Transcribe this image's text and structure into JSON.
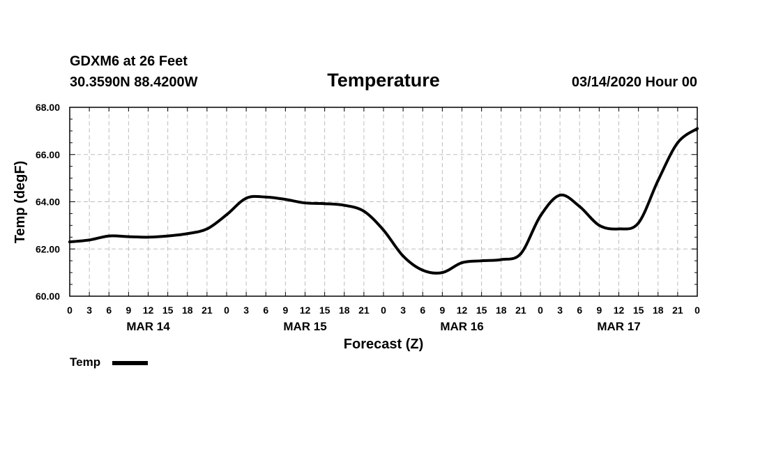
{
  "header": {
    "station": "GDXM6 at 26 Feet",
    "location": "30.3590N 88.4200W",
    "run": "03/14/2020 Hour 00"
  },
  "chart_data": {
    "type": "line",
    "title": "Temperature",
    "xlabel": "Forecast (Z)",
    "ylabel": "Temp (degF)",
    "xlim": [
      0,
      96
    ],
    "ylim": [
      60,
      68
    ],
    "yticks": [
      "60.00",
      "62.00",
      "64.00",
      "66.00",
      "68.00"
    ],
    "xtick_values": [
      0,
      3,
      6,
      9,
      12,
      15,
      18,
      21,
      24,
      27,
      30,
      33,
      36,
      39,
      42,
      45,
      48,
      51,
      54,
      57,
      60,
      63,
      66,
      69,
      72,
      75,
      78,
      81,
      84,
      87,
      90,
      93,
      96
    ],
    "xtick_labels": [
      "0",
      "3",
      "6",
      "9",
      "12",
      "15",
      "18",
      "21",
      "0",
      "3",
      "6",
      "9",
      "12",
      "15",
      "18",
      "21",
      "0",
      "3",
      "6",
      "9",
      "12",
      "15",
      "18",
      "21",
      "0",
      "3",
      "6",
      "9",
      "12",
      "15",
      "18",
      "21",
      "0"
    ],
    "day_labels": [
      {
        "x": 12,
        "label": "MAR 14"
      },
      {
        "x": 36,
        "label": "MAR 15"
      },
      {
        "x": 60,
        "label": "MAR 16"
      },
      {
        "x": 84,
        "label": "MAR 17"
      }
    ],
    "grid": true,
    "legend_position": "bottom-left",
    "series": [
      {
        "name": "Temp",
        "color": "#000000",
        "x": [
          0,
          3,
          6,
          9,
          12,
          15,
          18,
          21,
          24,
          27,
          30,
          33,
          36,
          39,
          42,
          45,
          48,
          51,
          54,
          57,
          60,
          63,
          66,
          69,
          72,
          75,
          78,
          81,
          84,
          87,
          90,
          93,
          96
        ],
        "y": [
          62.3,
          62.38,
          62.55,
          62.52,
          62.5,
          62.55,
          62.65,
          62.85,
          63.45,
          64.15,
          64.2,
          64.1,
          63.95,
          63.92,
          63.85,
          63.6,
          62.8,
          61.7,
          61.1,
          61.0,
          61.42,
          61.5,
          61.55,
          61.8,
          63.4,
          64.28,
          63.8,
          63.0,
          62.85,
          63.1,
          64.9,
          66.5,
          67.1
        ]
      }
    ]
  }
}
